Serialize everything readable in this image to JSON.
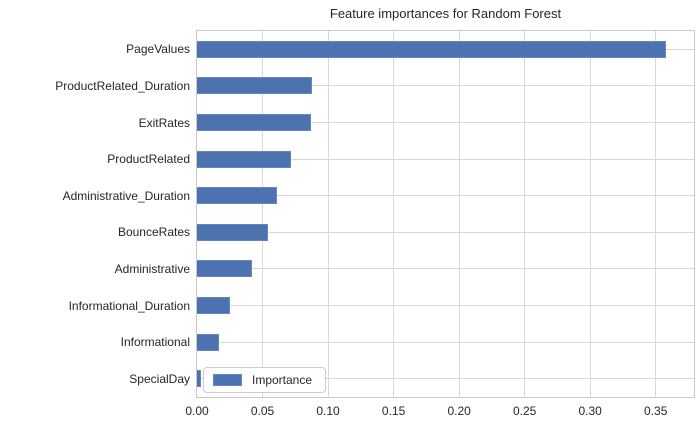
{
  "chart_data": {
    "type": "bar",
    "orientation": "horizontal",
    "title": "Feature importances for Random Forest",
    "categories": [
      "PageValues",
      "ProductRelated_Duration",
      "ExitRates",
      "ProductRelated",
      "Administrative_Duration",
      "BounceRates",
      "Administrative",
      "Informational_Duration",
      "Informational",
      "SpecialDay"
    ],
    "values": [
      0.358,
      0.088,
      0.087,
      0.072,
      0.061,
      0.054,
      0.042,
      0.025,
      0.017,
      0.003
    ],
    "series_name": "Importance",
    "xlabel": "",
    "ylabel": "",
    "xlim": [
      0,
      0.3792
    ],
    "xticks": [
      0,
      0.05,
      0.1,
      0.15,
      0.2,
      0.25,
      0.3,
      0.35
    ],
    "xtick_labels": [
      "0.00",
      "0.05",
      "0.10",
      "0.15",
      "0.20",
      "0.25",
      "0.30",
      "0.35"
    ],
    "grid": true,
    "legend": {
      "label": "Importance",
      "position": "lower left"
    },
    "colors": {
      "bar": "#4c72b0",
      "bar_edge": "#6586bf",
      "grid": "#d8d8d8",
      "spine": "#c9c9c9",
      "text": "#262626",
      "background": "#ffffff"
    }
  }
}
